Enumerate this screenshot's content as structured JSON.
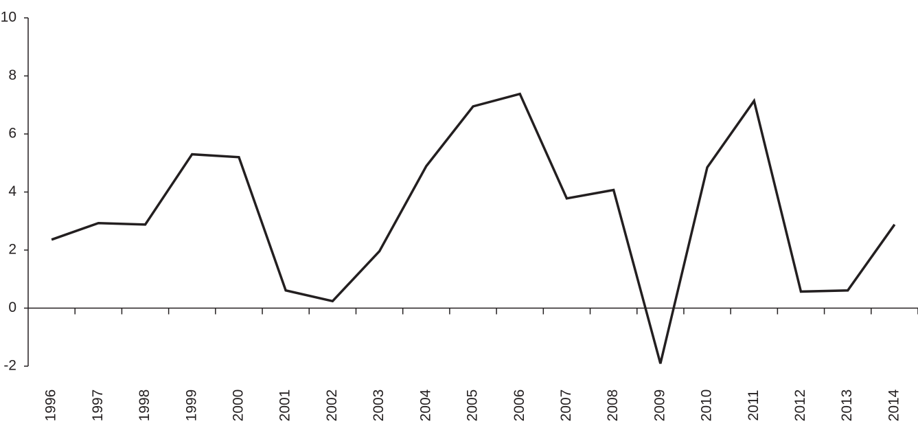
{
  "chart_data": {
    "type": "line",
    "categories": [
      "1996",
      "1997",
      "1998",
      "1999",
      "2000",
      "2001",
      "2002",
      "2003",
      "2004",
      "2005",
      "2006",
      "2007",
      "2008",
      "2009",
      "2010",
      "2011",
      "2012",
      "2013",
      "2014"
    ],
    "series": [
      {
        "color": "#231f20",
        "values": [
          2.36,
          2.93,
          2.88,
          5.3,
          5.2,
          0.61,
          0.24,
          1.96,
          4.89,
          6.95,
          7.38,
          3.78,
          4.07,
          -1.91,
          4.85,
          7.14,
          0.57,
          0.61,
          2.88
        ]
      }
    ],
    "ylim": [
      -2,
      10
    ],
    "yticks": [
      -2,
      0,
      2,
      4,
      6,
      8,
      10
    ],
    "grid": false
  }
}
